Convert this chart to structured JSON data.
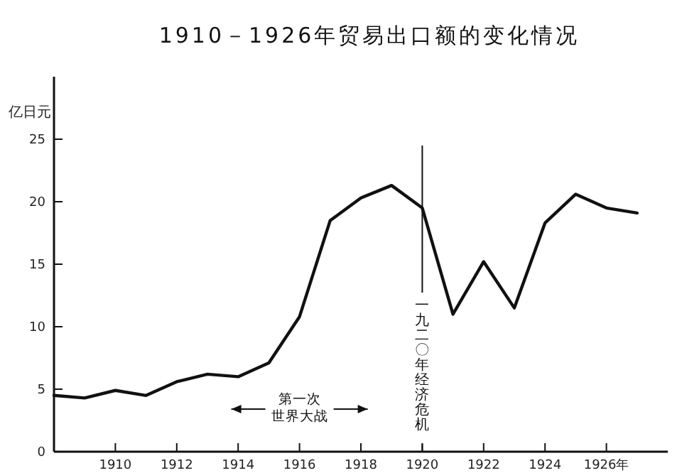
{
  "chart_data": {
    "type": "line",
    "title": "1910－1926年贸易出口额的变化情况",
    "ylabel": "亿日元",
    "x": [
      1908,
      1909,
      1910,
      1911,
      1912,
      1913,
      1914,
      1915,
      1916,
      1917,
      1918,
      1919,
      1920,
      1921,
      1922,
      1923,
      1924,
      1925,
      1926,
      1927
    ],
    "series": [
      {
        "color": "#111111",
        "values": [
          4.5,
          4.3,
          4.9,
          4.5,
          5.6,
          6.2,
          6.0,
          7.1,
          10.8,
          18.5,
          20.3,
          21.3,
          19.5,
          11.0,
          15.2,
          11.5,
          18.3,
          20.6,
          19.5,
          19.1
        ]
      }
    ],
    "xlim": [
      1908,
      1928
    ],
    "xticks": [
      1910,
      1912,
      1914,
      1916,
      1918,
      1920,
      1922,
      1924,
      {
        "value": 1926,
        "label": "1926年"
      }
    ],
    "ylim": [
      0,
      30
    ],
    "yticks": [
      0,
      5,
      10,
      15,
      20,
      25
    ],
    "ref_lines": [
      {
        "axis": "x",
        "value": 1920,
        "label": "一九二〇年经济危机",
        "color": "#111111",
        "line_style": "solid"
      }
    ],
    "annotations": [
      "第一次世界大战"
    ],
    "grid": false,
    "marker": "none",
    "line_style": "solid"
  }
}
